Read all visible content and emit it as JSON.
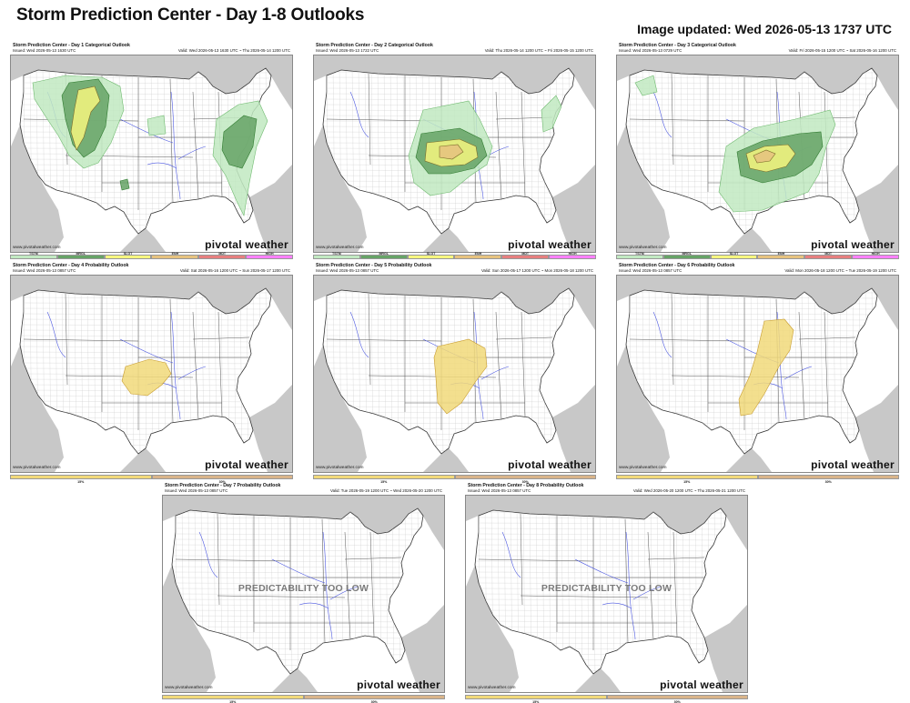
{
  "page": {
    "title": "Storm Prediction Center - Day 1-8 Outlooks",
    "updated": "Image updated: Wed 2026-05-13 1737 UTC"
  },
  "colors": {
    "tstm": "#c1e9c1",
    "mrgl": "#66a366",
    "slgt": "#f6f67f",
    "enh": "#e6c27f",
    "mdt": "#e67f7f",
    "high": "#ff80ff",
    "prob15": "#f1d97a",
    "prob30": "#d9b48a",
    "land": "#ffffff",
    "ocean": "#c8c8c8",
    "counties": "#c9c9c9",
    "rivers": "#4a56e0"
  },
  "categorical_legend": [
    "TSTM",
    "MRGL",
    "SLGT",
    "ENH",
    "MDT",
    "HIGH"
  ],
  "probability_legend": [
    "15%",
    "30%"
  ],
  "panels": [
    {
      "id": "day1",
      "title": "Storm Prediction Center - Day 1 Categorical Outlook",
      "issued": "Issued: Wed 2026-05-13 1630 UTC",
      "valid": "Valid: Wed 2026-05-13 1630 UTC ~ Thu 2026-05-14 1200 UTC",
      "credit": "www.pivotalweather.com",
      "brand": "pivotal weather",
      "type": "categorical",
      "overlay_text": ""
    },
    {
      "id": "day2",
      "title": "Storm Prediction Center - Day 2 Categorical Outlook",
      "issued": "Issued: Wed 2026-05-13 1722 UTC",
      "valid": "Valid: Thu 2026-05-14 1200 UTC ~ Fri 2026-05-15 1200 UTC",
      "credit": "www.pivotalweather.com",
      "brand": "pivotal weather",
      "type": "categorical",
      "overlay_text": ""
    },
    {
      "id": "day3",
      "title": "Storm Prediction Center - Day 3 Categorical Outlook",
      "issued": "Issued: Wed 2026-05-13 0729 UTC",
      "valid": "Valid: Fri 2026-05-15 1200 UTC ~ Sat 2026-05-16 1200 UTC",
      "credit": "www.pivotalweather.com",
      "brand": "pivotal weather",
      "type": "categorical",
      "overlay_text": ""
    },
    {
      "id": "day4",
      "title": "Storm Prediction Center - Day 4 Probability Outlook",
      "issued": "Issued: Wed 2026-05-13 0857 UTC",
      "valid": "Valid: Sat 2026-05-16 1200 UTC ~ Sun 2026-05-17 1200 UTC",
      "credit": "www.pivotalweather.com",
      "brand": "pivotal weather",
      "type": "probability",
      "overlay_text": ""
    },
    {
      "id": "day5",
      "title": "Storm Prediction Center - Day 5 Probability Outlook",
      "issued": "Issued: Wed 2026-05-13 0857 UTC",
      "valid": "Valid: Sun 2026-05-17 1200 UTC ~ Mon 2026-05-18 1200 UTC",
      "credit": "www.pivotalweather.com",
      "brand": "pivotal weather",
      "type": "probability",
      "overlay_text": ""
    },
    {
      "id": "day6",
      "title": "Storm Prediction Center - Day 6 Probability Outlook",
      "issued": "Issued: Wed 2026-05-13 0857 UTC",
      "valid": "Valid: Mon 2026-05-18 1200 UTC ~ Tue 2026-05-19 1200 UTC",
      "credit": "www.pivotalweather.com",
      "brand": "pivotal weather",
      "type": "probability",
      "overlay_text": ""
    },
    {
      "id": "day7",
      "title": "Storm Prediction Center - Day 7 Probability Outlook",
      "issued": "Issued: Wed 2026-05-13 0857 UTC",
      "valid": "Valid: Tue 2026-05-19 1200 UTC ~ Wed 2026-05-20 1200 UTC",
      "credit": "www.pivotalweather.com",
      "brand": "pivotal weather",
      "type": "probability",
      "overlay_text": "PREDICTABILITY TOO LOW"
    },
    {
      "id": "day8",
      "title": "Storm Prediction Center - Day 8 Probability Outlook",
      "issued": "Issued: Wed 2026-05-13 0857 UTC",
      "valid": "Valid: Wed 2026-05-20 1200 UTC ~ Thu 2026-05-21 1200 UTC",
      "credit": "www.pivotalweather.com",
      "brand": "pivotal weather",
      "type": "probability",
      "overlay_text": "PREDICTABILITY TOO LOW"
    }
  ]
}
